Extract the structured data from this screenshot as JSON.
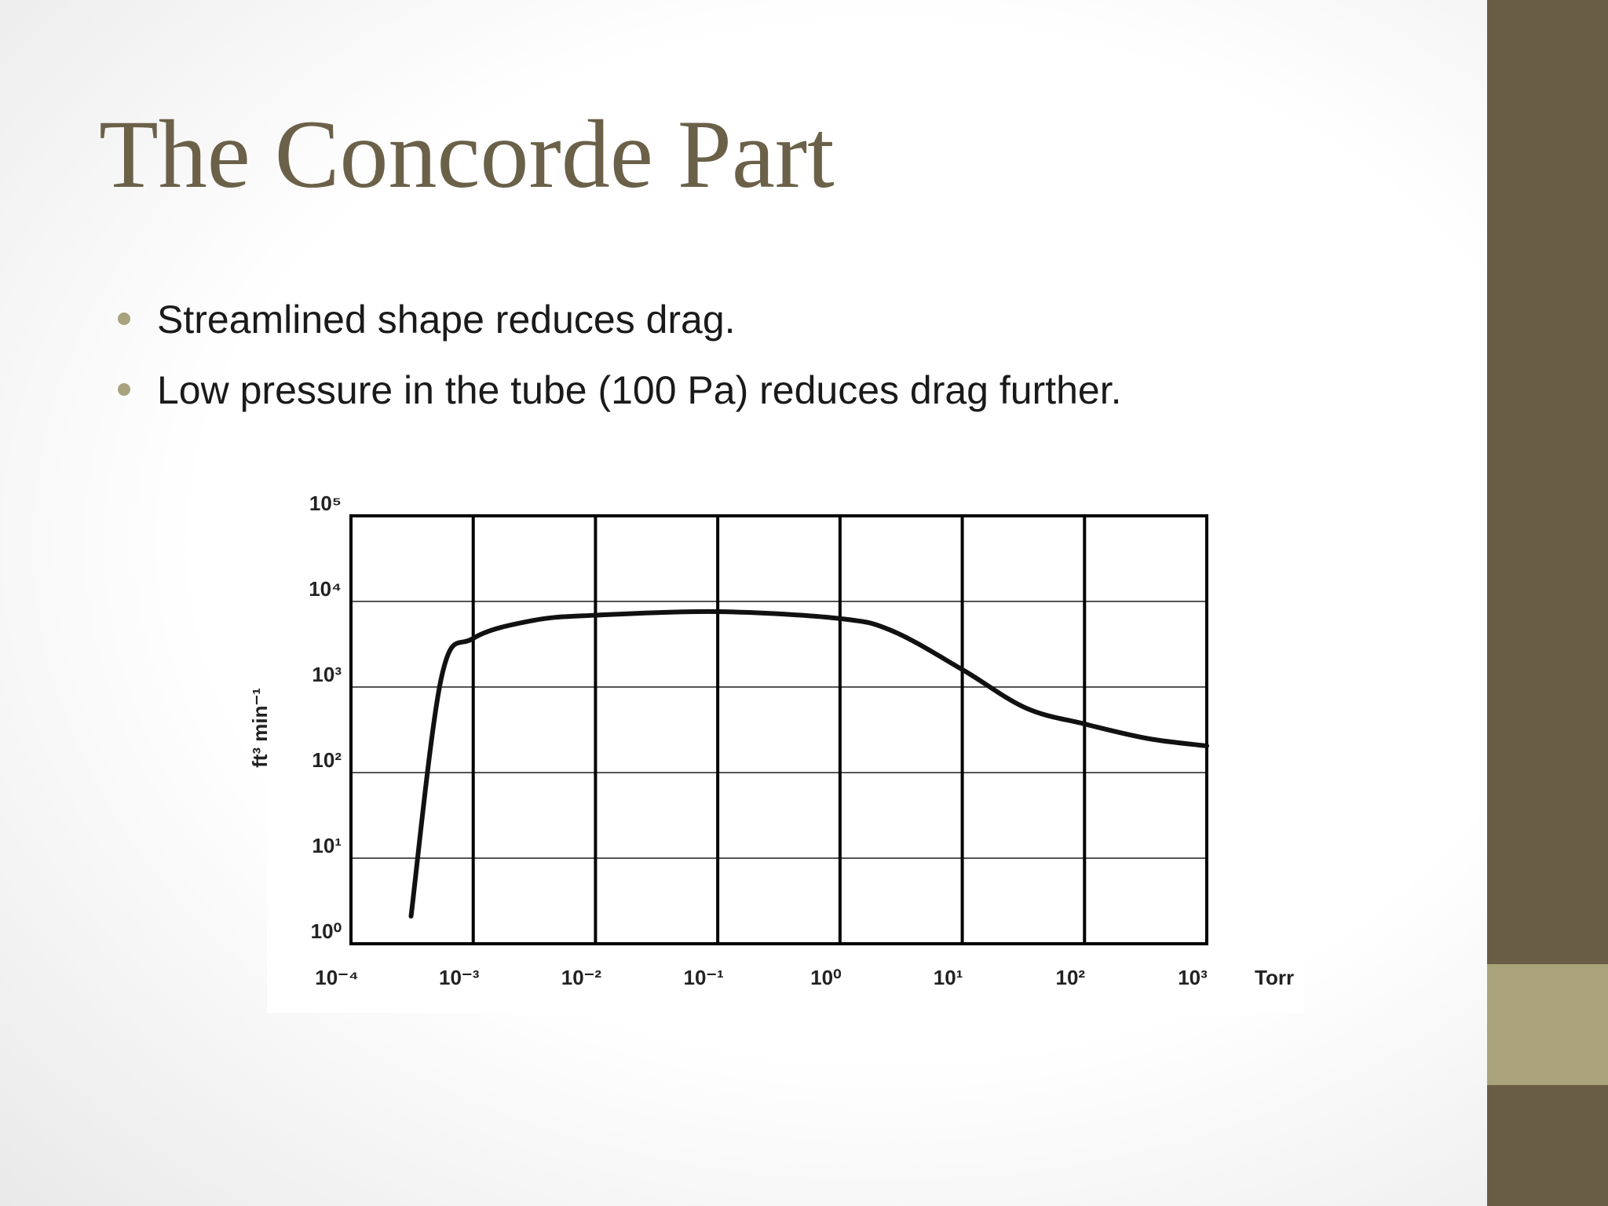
{
  "slide": {
    "title": "The Concorde Part",
    "bullets": [
      "Streamlined shape reduces drag.",
      "Low pressure in the tube (100 Pa) reduces drag further."
    ]
  },
  "chart_data": {
    "type": "line",
    "x_scale": "log",
    "y_scale": "log",
    "y_label": "ft³ min⁻¹",
    "x_unit": "Torr",
    "x": [
      0.00031,
      0.00055,
      0.001,
      0.0031,
      0.01,
      0.1,
      1,
      2.7,
      10,
      33,
      100,
      330,
      1000
    ],
    "values": [
      2.1,
      1300,
      3700,
      6000,
      6900,
      7600,
      6300,
      4500,
      1600,
      570,
      370,
      250,
      205
    ],
    "color": "#111111",
    "xlim": [
      0.0001,
      1000
    ],
    "xticks": [
      {
        "value": 0.0001,
        "label": "10⁻⁴"
      },
      {
        "value": 0.001,
        "label": "10⁻³"
      },
      {
        "value": 0.01,
        "label": "10⁻²"
      },
      {
        "value": 0.1,
        "label": "10⁻¹"
      },
      {
        "value": 1,
        "label": "10⁰"
      },
      {
        "value": 10,
        "label": "10¹"
      },
      {
        "value": 100,
        "label": "10²"
      },
      {
        "value": 1000,
        "label": "10³"
      }
    ],
    "ylim": [
      1,
      100000
    ],
    "yticks": [
      {
        "value": 1,
        "label": "10⁰"
      },
      {
        "value": 10,
        "label": "10¹"
      },
      {
        "value": 100,
        "label": "10²"
      },
      {
        "value": 1000,
        "label": "10³"
      },
      {
        "value": 10000,
        "label": "10⁴"
      },
      {
        "value": 100000,
        "label": "10⁵"
      }
    ],
    "grid": true
  }
}
